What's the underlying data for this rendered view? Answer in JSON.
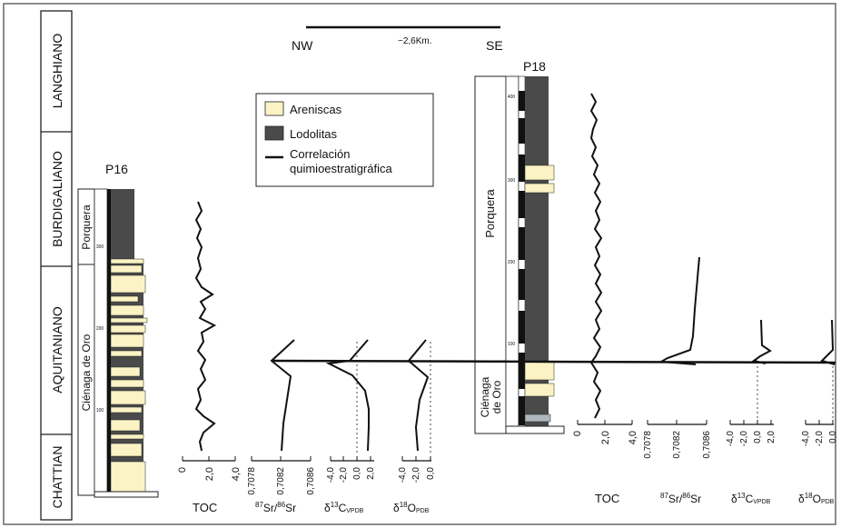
{
  "stages": [
    "LANGHIANO",
    "BURDIGALIANO",
    "AQUITANIANO",
    "CHATTIAN"
  ],
  "scale_bar": {
    "left_label": "NW",
    "right_label": "SE",
    "distance": "~2,6Km."
  },
  "legend": {
    "sandstone": "Areniscas",
    "mudstone": "Lodolitas",
    "correlation_line1": "Correlación",
    "correlation_line2": "quimioestratigráfica"
  },
  "colors": {
    "sandstone": "#fbf3c4",
    "mudstone": "#4a4a4a",
    "line": "#111111"
  },
  "sections": [
    {
      "id": "P16",
      "formations": [
        "Porquera",
        "Ciénaga de Oro"
      ],
      "depth_ticks": [
        "300",
        "200",
        "100"
      ],
      "axes": [
        {
          "label": "TOC",
          "ticks": [
            "0",
            "2,0",
            "4,0"
          ]
        },
        {
          "label_parts": [
            "87",
            "Sr/",
            "86",
            "Sr"
          ],
          "ticks": [
            "0,7078",
            "0,7082",
            "0,7086"
          ]
        },
        {
          "label_parts": [
            "δ",
            "13",
            "C",
            "VPDB"
          ],
          "ticks": [
            "-4,0",
            "-2,0",
            "0,0",
            "2,0"
          ]
        },
        {
          "label_parts": [
            "δ",
            "18",
            "O",
            "PDB"
          ],
          "ticks": [
            "-4,0",
            "-2,0",
            "0,0"
          ]
        }
      ]
    },
    {
      "id": "P18",
      "formations": [
        "Porquera",
        "Ciénaga",
        "de Oro"
      ],
      "depth_ticks": [
        "400",
        "300",
        "200",
        "100"
      ],
      "axes": [
        {
          "label": "TOC",
          "ticks": [
            "0",
            "2,0",
            "4,0"
          ]
        },
        {
          "label_parts": [
            "87",
            "Sr/",
            "86",
            "Sr"
          ],
          "ticks": [
            "0,7078",
            "0,7082",
            "0,7086"
          ]
        },
        {
          "label_parts": [
            "δ",
            "13",
            "C",
            "VPDB"
          ],
          "ticks": [
            "-4,0",
            "-2,0",
            "0,0",
            "2,0"
          ]
        },
        {
          "label_parts": [
            "δ",
            "18",
            "O",
            "PDB"
          ],
          "ticks": [
            "-4,0",
            "-2,0",
            "0,0"
          ]
        }
      ]
    }
  ]
}
